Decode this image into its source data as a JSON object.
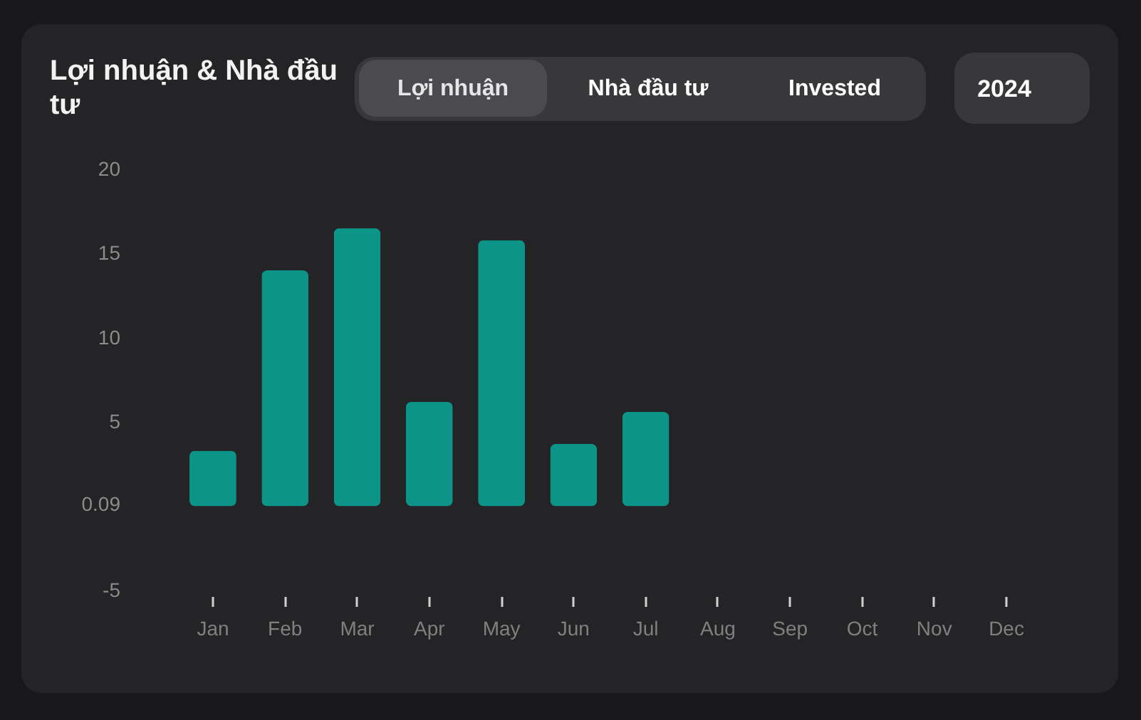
{
  "chart_data": {
    "type": "bar",
    "title": "Lợi nhuận & Nhà đầu tư",
    "categories": [
      "Jan",
      "Feb",
      "Mar",
      "Apr",
      "May",
      "Jun",
      "Jul",
      "Aug",
      "Sep",
      "Oct",
      "Nov",
      "Dec"
    ],
    "values": [
      3.3,
      14.0,
      16.5,
      6.2,
      15.8,
      3.7,
      5.6,
      null,
      null,
      null,
      null,
      null
    ],
    "color": "#0d9488",
    "ylim": [
      -5,
      20
    ],
    "yticks": [
      -5,
      0.09,
      5,
      10,
      15,
      20
    ],
    "annotations": [
      "Lợi nhuận",
      "Nhà đầu tư",
      "Invested",
      "2024"
    ]
  }
}
